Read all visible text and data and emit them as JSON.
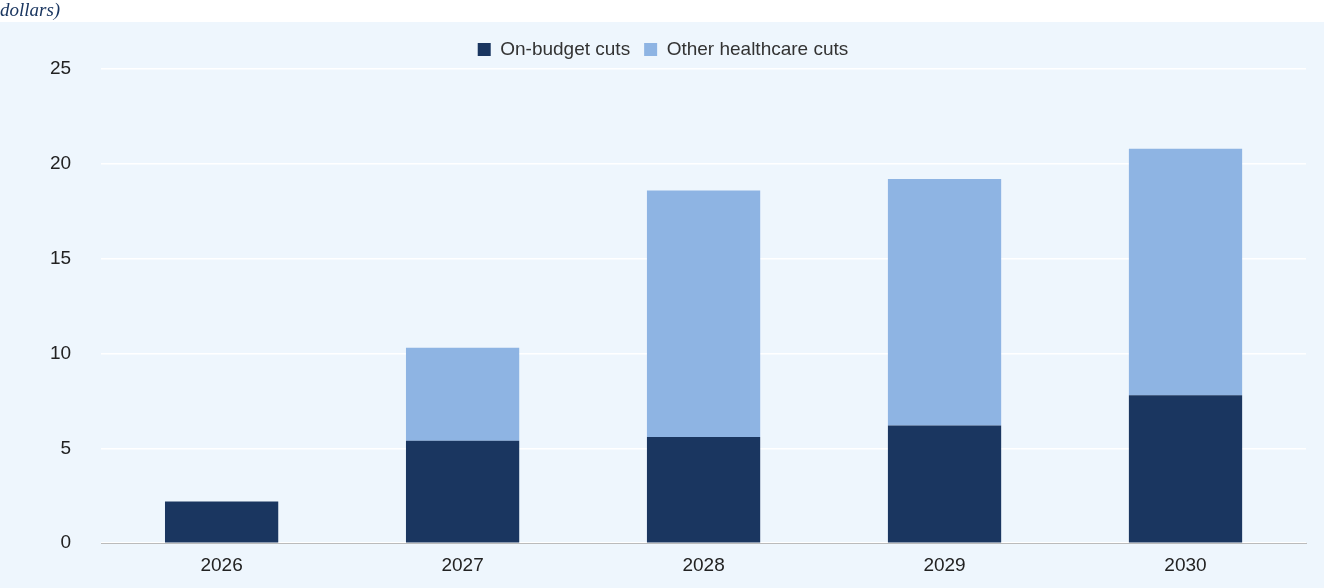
{
  "chart_data": {
    "type": "bar",
    "title": "dollars)",
    "stacked": true,
    "categories": [
      "2026",
      "2027",
      "2028",
      "2029",
      "2030"
    ],
    "series": [
      {
        "name": "On-budget cuts",
        "color": "#1a3660",
        "values": [
          2.2,
          5.4,
          5.6,
          6.2,
          7.8
        ]
      },
      {
        "name": "Other healthcare cuts",
        "color": "#8eb4e3",
        "values": [
          0,
          4.9,
          13.0,
          13.0,
          13.0
        ]
      }
    ],
    "ylim": [
      0,
      25
    ],
    "yticks": [
      0,
      5,
      10,
      15,
      20,
      25
    ],
    "grid": "y",
    "legend": "top"
  }
}
